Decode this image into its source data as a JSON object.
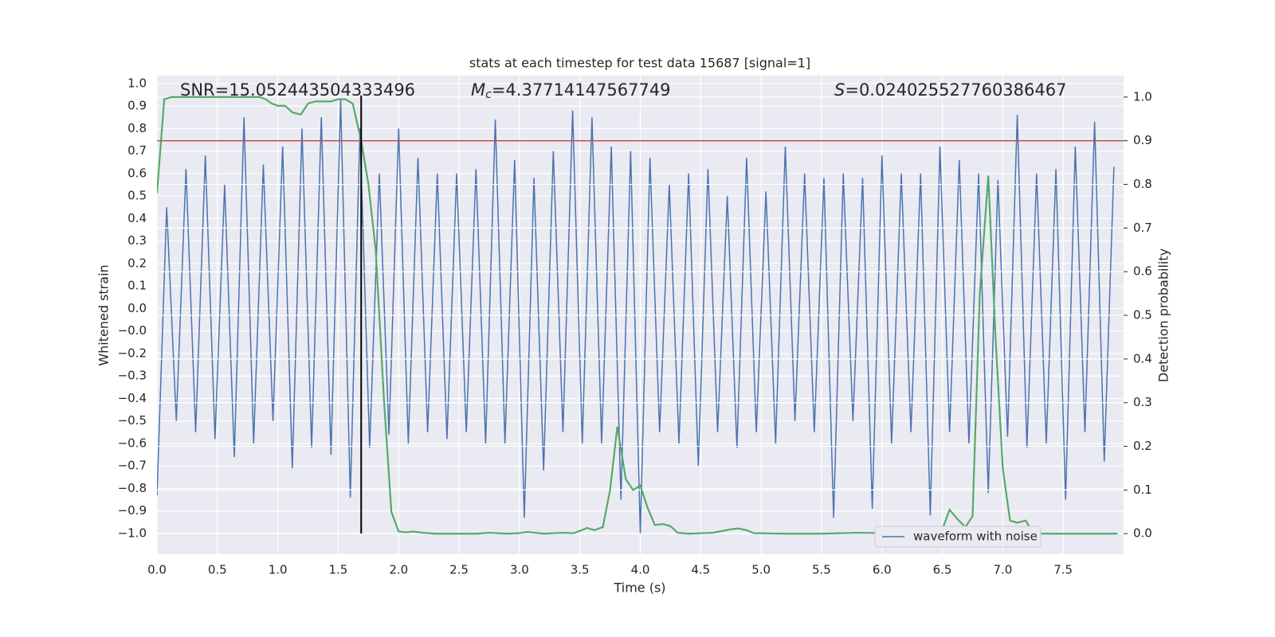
{
  "chart_data": {
    "type": "line",
    "title": "stats at each timestep for test data 15687 [signal=1]",
    "xlabel": "Time (s)",
    "ylabel": "Whitened strain",
    "y2label": "Detection probability",
    "annotations": [
      {
        "text": "SNR=15.052443504333496"
      },
      {
        "symbol": "M",
        "subscript": "c",
        "text": "=4.37714147567749"
      },
      {
        "symbol": "S",
        "text": "=0.024025527760386467"
      }
    ],
    "xlim": [
      0,
      8
    ],
    "ylim": [
      -1.092,
      1.035
    ],
    "y2lim": [
      -0.047,
      1.049
    ],
    "grid": true,
    "legend": "lower right",
    "xticks": [
      {
        "value": 0,
        "label": "0.0"
      },
      {
        "value": 0.5,
        "label": "0.5"
      },
      {
        "value": 1,
        "label": "1.0"
      },
      {
        "value": 1.5,
        "label": "1.5"
      },
      {
        "value": 2,
        "label": "2.0"
      },
      {
        "value": 2.5,
        "label": "2.5"
      },
      {
        "value": 3,
        "label": "3.0"
      },
      {
        "value": 3.5,
        "label": "3.5"
      },
      {
        "value": 4,
        "label": "4.0"
      },
      {
        "value": 4.5,
        "label": "4.5"
      },
      {
        "value": 5,
        "label": "5.0"
      },
      {
        "value": 5.5,
        "label": "5.5"
      },
      {
        "value": 6,
        "label": "6.0"
      },
      {
        "value": 6.5,
        "label": "6.5"
      },
      {
        "value": 7,
        "label": "7.0"
      },
      {
        "value": 7.5,
        "label": "7.5"
      }
    ],
    "yticks": [
      {
        "value": 1,
        "label": "1.0"
      },
      {
        "value": 0.9,
        "label": "0.9"
      },
      {
        "value": 0.8,
        "label": "0.8"
      },
      {
        "value": 0.7,
        "label": "0.7"
      },
      {
        "value": 0.6,
        "label": "0.6"
      },
      {
        "value": 0.5,
        "label": "0.5"
      },
      {
        "value": 0.4,
        "label": "0.4"
      },
      {
        "value": 0.3,
        "label": "0.3"
      },
      {
        "value": 0.2,
        "label": "0.2"
      },
      {
        "value": 0.1,
        "label": "0.1"
      },
      {
        "value": 0,
        "label": "0.0"
      },
      {
        "value": -0.1,
        "label": "−0.0"
      },
      {
        "value": -0.2,
        "label": "−0.2"
      },
      {
        "value": -0.3,
        "label": "−0.3"
      },
      {
        "value": -0.4,
        "label": "−0.4"
      },
      {
        "value": -0.5,
        "label": "−0.5"
      },
      {
        "value": -0.6,
        "label": "−0.6"
      },
      {
        "value": -0.7,
        "label": "−0.7"
      },
      {
        "value": -0.8,
        "label": "−0.8"
      },
      {
        "value": -0.9,
        "label": "−0.9"
      },
      {
        "value": -1,
        "label": "−1.0"
      }
    ],
    "y2ticks": [
      {
        "value": 0,
        "label": "0.0"
      },
      {
        "value": 0.1,
        "label": "0.1"
      },
      {
        "value": 0.2,
        "label": "0.2"
      },
      {
        "value": 0.3,
        "label": "0.3"
      },
      {
        "value": 0.4,
        "label": "0.4"
      },
      {
        "value": 0.5,
        "label": "0.5"
      },
      {
        "value": 0.6,
        "label": "0.6"
      },
      {
        "value": 0.7,
        "label": "0.7"
      },
      {
        "value": 0.8,
        "label": "0.8"
      },
      {
        "value": 0.9,
        "label": "0.9"
      },
      {
        "value": 1,
        "label": "1.0"
      }
    ],
    "hlines": [
      {
        "value": 0.9,
        "axis": "y2",
        "color": "#c44e52"
      }
    ],
    "vlines": [
      {
        "value": 1.69,
        "color": "#000000"
      }
    ],
    "series": [
      {
        "name": "waveform with noise",
        "color": "#4c72b0",
        "x": [
          0,
          0.08,
          0.16,
          0.24,
          0.32,
          0.4,
          0.48,
          0.56,
          0.64,
          0.72,
          0.8,
          0.88,
          0.96,
          1.04,
          1.12,
          1.2,
          1.28,
          1.36,
          1.44,
          1.52,
          1.6,
          1.68,
          1.76,
          1.84,
          1.92,
          2,
          2.08,
          2.16,
          2.24,
          2.32,
          2.4,
          2.48,
          2.56,
          2.64,
          2.72,
          2.8,
          2.88,
          2.96,
          3.04,
          3.12,
          3.2,
          3.28,
          3.36,
          3.44,
          3.52,
          3.6,
          3.68,
          3.76,
          3.84,
          3.92,
          4,
          4.08,
          4.16,
          4.24,
          4.32,
          4.4,
          4.48,
          4.56,
          4.64,
          4.72,
          4.8,
          4.88,
          4.96,
          5.04,
          5.12,
          5.2,
          5.28,
          5.36,
          5.44,
          5.52,
          5.6,
          5.68,
          5.76,
          5.84,
          5.92,
          6,
          6.08,
          6.16,
          6.24,
          6.32,
          6.4,
          6.48,
          6.56,
          6.64,
          6.72,
          6.8,
          6.88,
          6.96,
          7.04,
          7.12,
          7.2,
          7.28,
          7.36,
          7.44,
          7.52,
          7.6,
          7.68,
          7.76,
          7.84,
          7.92
        ],
        "values": [
          -0.83,
          0.45,
          -0.5,
          0.62,
          -0.55,
          0.68,
          -0.58,
          0.55,
          -0.66,
          0.85,
          -0.6,
          0.64,
          -0.5,
          0.72,
          -0.71,
          0.8,
          -0.62,
          0.85,
          -0.65,
          0.93,
          -0.84,
          0.8,
          -0.62,
          0.6,
          -0.56,
          0.8,
          -0.6,
          0.67,
          -0.55,
          0.6,
          -0.58,
          0.6,
          -0.55,
          0.62,
          -0.6,
          0.84,
          -0.6,
          0.66,
          -0.93,
          0.58,
          -0.72,
          0.7,
          -0.55,
          0.88,
          -0.6,
          0.85,
          -0.6,
          0.72,
          -0.85,
          0.7,
          -1.0,
          0.67,
          -0.55,
          0.55,
          -0.6,
          0.6,
          -0.7,
          0.62,
          -0.55,
          0.5,
          -0.62,
          0.67,
          -0.55,
          0.52,
          -0.6,
          0.72,
          -0.5,
          0.6,
          -0.55,
          0.58,
          -0.93,
          0.6,
          -0.5,
          0.58,
          -0.89,
          0.68,
          -0.6,
          0.6,
          -0.55,
          0.6,
          -0.92,
          0.72,
          -0.55,
          0.66,
          -0.6,
          0.6,
          -0.82,
          0.57,
          -0.57,
          0.86,
          -0.62,
          0.6,
          -0.6,
          0.62,
          -0.85,
          0.72,
          -0.55,
          0.83,
          -0.68,
          0.63
        ]
      },
      {
        "color": "#55a868",
        "axis": "y2",
        "x": [
          0,
          0.06,
          0.12,
          0.3,
          0.5,
          0.7,
          0.85,
          0.9,
          0.95,
          1.0,
          1.06,
          1.12,
          1.19,
          1.25,
          1.31,
          1.38,
          1.44,
          1.5,
          1.56,
          1.62,
          1.69,
          1.75,
          1.81,
          1.88,
          1.94,
          2.0,
          2.06,
          2.12,
          2.2,
          2.3,
          2.5,
          2.65,
          2.75,
          2.9,
          3.0,
          3.06,
          3.2,
          3.35,
          3.45,
          3.56,
          3.62,
          3.69,
          3.75,
          3.81,
          3.88,
          3.94,
          4.0,
          4.06,
          4.12,
          4.19,
          4.25,
          4.31,
          4.4,
          4.6,
          4.75,
          4.81,
          4.88,
          4.94,
          5.2,
          5.5,
          5.8,
          6.0,
          6.2,
          6.3,
          6.4,
          6.45,
          6.5,
          6.56,
          6.62,
          6.69,
          6.75,
          6.81,
          6.88,
          6.94,
          7.0,
          7.06,
          7.12,
          7.19,
          7.25,
          7.3,
          7.5,
          7.7,
          7.95
        ],
        "values": [
          0.78,
          0.995,
          1.0,
          1.0,
          1.0,
          1.0,
          1.0,
          0.995,
          0.985,
          0.98,
          0.98,
          0.965,
          0.96,
          0.985,
          0.99,
          0.99,
          0.99,
          0.995,
          0.995,
          0.985,
          0.9,
          0.8,
          0.65,
          0.3,
          0.05,
          0.005,
          0.003,
          0.005,
          0.002,
          0.0,
          0.0,
          0.0,
          0.002,
          0.0,
          0.001,
          0.004,
          0.0,
          0.002,
          0.001,
          0.013,
          0.008,
          0.015,
          0.1,
          0.245,
          0.125,
          0.1,
          0.11,
          0.06,
          0.02,
          0.022,
          0.017,
          0.002,
          0.0,
          0.002,
          0.01,
          0.012,
          0.008,
          0.001,
          0.0,
          0.0,
          0.002,
          0.001,
          0.002,
          0.006,
          0.006,
          0.003,
          0.01,
          0.055,
          0.035,
          0.015,
          0.04,
          0.55,
          0.82,
          0.45,
          0.15,
          0.03,
          0.025,
          0.03,
          0.002,
          0.0,
          0.0,
          0.0,
          0.0
        ]
      }
    ]
  }
}
